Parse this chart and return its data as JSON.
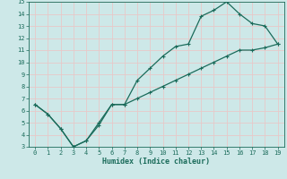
{
  "xlabel": "Humidex (Indice chaleur)",
  "bg_color": "#cde8e8",
  "grid_color": "#e8c8c8",
  "line_color": "#1a6b5a",
  "xlim": [
    -0.5,
    19.5
  ],
  "ylim": [
    3,
    15
  ],
  "xticks": [
    0,
    1,
    2,
    3,
    4,
    5,
    6,
    7,
    8,
    9,
    10,
    11,
    12,
    13,
    14,
    15,
    16,
    17,
    18,
    19
  ],
  "yticks": [
    3,
    4,
    5,
    6,
    7,
    8,
    9,
    10,
    11,
    12,
    13,
    14,
    15
  ],
  "upper_x": [
    0,
    1,
    2,
    3,
    4,
    5,
    6,
    7,
    8,
    9,
    10,
    11,
    12,
    13,
    14,
    15,
    16,
    17,
    18,
    19
  ],
  "upper_y": [
    6.5,
    5.7,
    4.5,
    3.0,
    3.5,
    5.0,
    6.5,
    6.5,
    8.5,
    9.5,
    10.5,
    11.3,
    11.5,
    13.8,
    14.3,
    15.0,
    14.0,
    13.2,
    13.0,
    11.5
  ],
  "lower_x": [
    0,
    1,
    2,
    3,
    4,
    5,
    6,
    7,
    8,
    9,
    10,
    11,
    12,
    13,
    14,
    15,
    16,
    17,
    18,
    19
  ],
  "lower_y": [
    6.5,
    5.7,
    4.5,
    3.0,
    3.5,
    4.8,
    6.5,
    6.5,
    7.0,
    7.5,
    8.0,
    8.5,
    9.0,
    9.5,
    10.0,
    10.5,
    11.0,
    11.0,
    11.2,
    11.5
  ]
}
